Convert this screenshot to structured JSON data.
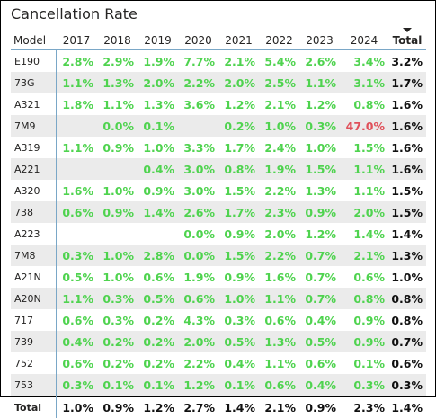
{
  "visual": {
    "title": "Cancellation Rate"
  },
  "colors": {
    "positive": "#4fd34f",
    "negative": "#e0505a",
    "alt_row": "#ebebeb",
    "divider": "#7aa7c7"
  },
  "header": {
    "model": "Model",
    "years": [
      "2017",
      "2018",
      "2019",
      "2020",
      "2021",
      "2022",
      "2023",
      "2024"
    ],
    "total": "Total",
    "sort_icon": "sort-descending-icon"
  },
  "rows": [
    {
      "model": "E190",
      "values": [
        "2.8%",
        "2.9%",
        "1.9%",
        "7.7%",
        "2.1%",
        "5.4%",
        "2.6%",
        "3.4%"
      ],
      "total": "3.2%",
      "flags": [
        "",
        "",
        "",
        "",
        "",
        "",
        "",
        ""
      ]
    },
    {
      "model": "73G",
      "values": [
        "1.1%",
        "1.3%",
        "2.0%",
        "2.2%",
        "2.0%",
        "2.5%",
        "1.1%",
        "3.1%"
      ],
      "total": "1.7%",
      "flags": [
        "",
        "",
        "",
        "",
        "",
        "",
        "",
        ""
      ]
    },
    {
      "model": "A321",
      "values": [
        "1.8%",
        "1.1%",
        "1.3%",
        "3.6%",
        "1.2%",
        "2.1%",
        "1.2%",
        "0.8%"
      ],
      "total": "1.6%",
      "flags": [
        "",
        "",
        "",
        "",
        "",
        "",
        "",
        ""
      ]
    },
    {
      "model": "7M9",
      "values": [
        "",
        "0.0%",
        "0.1%",
        "",
        "0.2%",
        "1.0%",
        "0.3%",
        "47.0%"
      ],
      "total": "1.6%",
      "flags": [
        "",
        "",
        "",
        "",
        "",
        "",
        "",
        "red"
      ]
    },
    {
      "model": "A319",
      "values": [
        "1.1%",
        "0.9%",
        "1.0%",
        "3.3%",
        "1.7%",
        "2.4%",
        "1.0%",
        "1.5%"
      ],
      "total": "1.6%",
      "flags": [
        "",
        "",
        "",
        "",
        "",
        "",
        "",
        ""
      ]
    },
    {
      "model": "A221",
      "values": [
        "",
        "",
        "0.4%",
        "3.0%",
        "0.8%",
        "1.9%",
        "1.5%",
        "1.1%"
      ],
      "total": "1.6%",
      "flags": [
        "",
        "",
        "",
        "",
        "",
        "",
        "",
        ""
      ]
    },
    {
      "model": "A320",
      "values": [
        "1.6%",
        "1.0%",
        "0.9%",
        "3.0%",
        "1.5%",
        "2.2%",
        "1.3%",
        "1.1%"
      ],
      "total": "1.5%",
      "flags": [
        "",
        "",
        "",
        "",
        "",
        "",
        "",
        ""
      ]
    },
    {
      "model": "738",
      "values": [
        "0.6%",
        "0.9%",
        "1.4%",
        "2.6%",
        "1.7%",
        "2.3%",
        "0.9%",
        "2.0%"
      ],
      "total": "1.5%",
      "flags": [
        "",
        "",
        "",
        "",
        "",
        "",
        "",
        ""
      ]
    },
    {
      "model": "A223",
      "values": [
        "",
        "",
        "",
        "0.0%",
        "0.9%",
        "2.0%",
        "1.2%",
        "1.4%"
      ],
      "total": "1.4%",
      "flags": [
        "",
        "",
        "",
        "",
        "",
        "",
        "",
        ""
      ]
    },
    {
      "model": "7M8",
      "values": [
        "0.3%",
        "1.0%",
        "2.8%",
        "0.0%",
        "1.5%",
        "2.2%",
        "0.7%",
        "2.1%"
      ],
      "total": "1.3%",
      "flags": [
        "",
        "",
        "",
        "",
        "",
        "",
        "",
        ""
      ]
    },
    {
      "model": "A21N",
      "values": [
        "0.5%",
        "1.0%",
        "0.6%",
        "1.9%",
        "0.9%",
        "1.6%",
        "0.7%",
        "0.6%"
      ],
      "total": "1.0%",
      "flags": [
        "",
        "",
        "",
        "",
        "",
        "",
        "",
        ""
      ]
    },
    {
      "model": "A20N",
      "values": [
        "1.1%",
        "0.3%",
        "0.5%",
        "0.6%",
        "1.0%",
        "1.1%",
        "0.7%",
        "0.8%"
      ],
      "total": "0.8%",
      "flags": [
        "",
        "",
        "",
        "",
        "",
        "",
        "",
        ""
      ]
    },
    {
      "model": "717",
      "values": [
        "0.6%",
        "0.3%",
        "0.2%",
        "4.3%",
        "0.3%",
        "0.6%",
        "0.4%",
        "0.9%"
      ],
      "total": "0.8%",
      "flags": [
        "",
        "",
        "",
        "",
        "",
        "",
        "",
        ""
      ]
    },
    {
      "model": "739",
      "values": [
        "0.4%",
        "0.2%",
        "0.2%",
        "2.0%",
        "0.5%",
        "1.3%",
        "0.5%",
        "0.9%"
      ],
      "total": "0.7%",
      "flags": [
        "",
        "",
        "",
        "",
        "",
        "",
        "",
        ""
      ]
    },
    {
      "model": "752",
      "values": [
        "0.6%",
        "0.2%",
        "0.2%",
        "2.2%",
        "0.4%",
        "1.1%",
        "0.6%",
        "0.1%"
      ],
      "total": "0.6%",
      "flags": [
        "",
        "",
        "",
        "",
        "",
        "",
        "",
        ""
      ]
    },
    {
      "model": "753",
      "values": [
        "0.3%",
        "0.1%",
        "0.1%",
        "1.2%",
        "0.1%",
        "0.6%",
        "0.4%",
        "0.3%"
      ],
      "total": "0.3%",
      "flags": [
        "",
        "",
        "",
        "",
        "",
        "",
        "",
        ""
      ]
    }
  ],
  "totals": {
    "label": "Total",
    "values": [
      "1.0%",
      "0.9%",
      "1.2%",
      "2.7%",
      "1.4%",
      "2.1%",
      "0.9%",
      "2.3%"
    ],
    "total": "1.4%"
  }
}
